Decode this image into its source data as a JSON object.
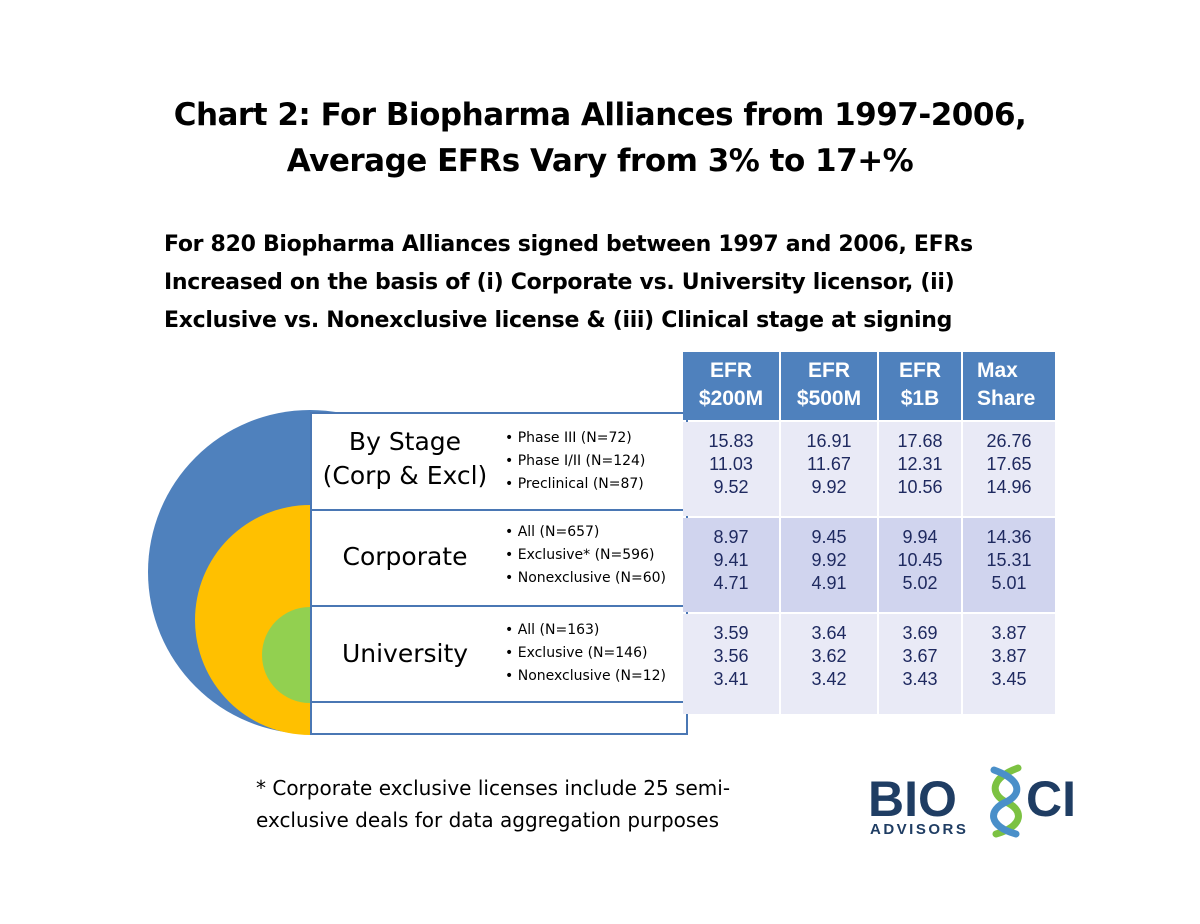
{
  "title": {
    "line1": "Chart 2:  For Biopharma Alliances from 1997-2006,",
    "line2": "Average EFRs Vary from 3% to 17+%"
  },
  "subtitle": {
    "line1": "For 820 Biopharma Alliances signed between 1997 and 2006, EFRs",
    "line2": "Increased on the basis of (i) Corporate vs. University licensor, (ii)",
    "line3": "Exclusive vs. Nonexclusive license & (iii) Clinical stage at signing"
  },
  "colors": {
    "outer_ring": "#4f81bd",
    "middle_ring": "#ffc000",
    "inner_ring": "#92d050",
    "header_fill": "#4f81bd",
    "row_fill_alt": "#e9eaf6",
    "row_fill": "#d0d4ee"
  },
  "chart_data": {
    "type": "table",
    "columns": [
      {
        "line1": "EFR",
        "line2": "$200M"
      },
      {
        "line1": "EFR",
        "line2": "$500M"
      },
      {
        "line1": "EFR",
        "line2": "$1B"
      },
      {
        "line1": "Max",
        "line2": "Share"
      }
    ],
    "groups": [
      {
        "label_line1": "By Stage",
        "label_line2": "(Corp & Excl)",
        "rows": [
          {
            "label": "Phase III (N=72)",
            "values": [
              "15.83",
              "16.91",
              "17.68",
              "26.76"
            ]
          },
          {
            "label": "Phase I/II (N=124)",
            "values": [
              "11.03",
              "11.67",
              "12.31",
              "17.65"
            ]
          },
          {
            "label": "Preclinical (N=87)",
            "values": [
              "9.52",
              "9.92",
              "10.56",
              "14.96"
            ]
          }
        ]
      },
      {
        "label_line1": "Corporate",
        "label_line2": "",
        "rows": [
          {
            "label": "All (N=657)",
            "values": [
              "8.97",
              "9.45",
              "9.94",
              "14.36"
            ]
          },
          {
            "label": "Exclusive* (N=596)",
            "values": [
              "9.41",
              "9.92",
              "10.45",
              "15.31"
            ]
          },
          {
            "label": "Nonexclusive (N=60)",
            "values": [
              "4.71",
              "4.91",
              "5.02",
              "5.01"
            ]
          }
        ]
      },
      {
        "label_line1": "University",
        "label_line2": "",
        "rows": [
          {
            "label": "All (N=163)",
            "values": [
              "3.59",
              "3.64",
              "3.69",
              "3.87"
            ]
          },
          {
            "label": "Exclusive (N=146)",
            "values": [
              "3.56",
              "3.62",
              "3.67",
              "3.87"
            ]
          },
          {
            "label": "Nonexclusive (N=12)",
            "values": [
              "3.41",
              "3.42",
              "3.43",
              "3.45"
            ]
          }
        ]
      }
    ]
  },
  "footnote": {
    "line1": "* Corporate exclusive licenses include 25 semi-",
    "line2": "exclusive deals for data aggregation purposes"
  },
  "logo": {
    "word_left": "BIO",
    "word_right": "CI",
    "tagline": "ADVISORS",
    "icon": "dna-helix-icon"
  }
}
